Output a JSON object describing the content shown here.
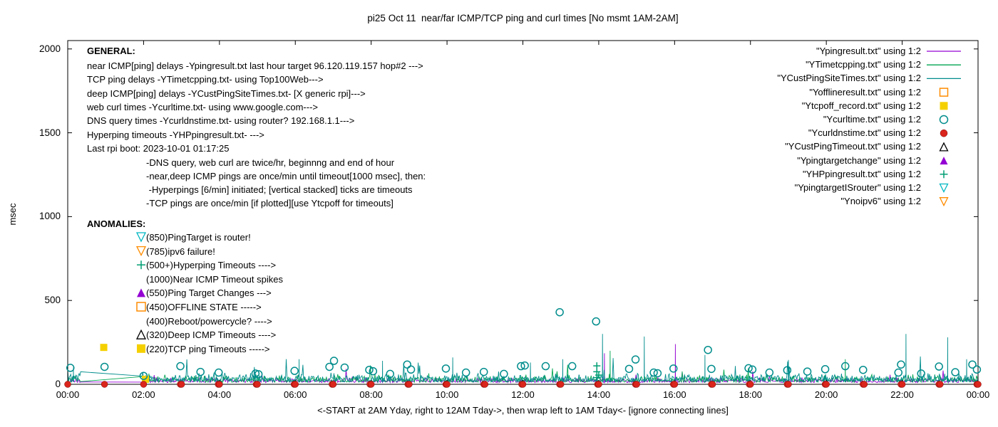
{
  "general": {
    "heading": "GENERAL:",
    "lines": [
      "near ICMP[ping] delays -Ypingresult.txt last hour target 96.120.119.157 hop#2 --->",
      "TCP ping delays -YTimetcpping.txt- using Top100Web--->",
      "deep ICMP[ping] delays -YCustPingSiteTimes.txt- [X generic rpi]--->",
      "web curl times -Ycurltime.txt- using www.google.com--->",
      "DNS query times -Ycurldnstime.txt- using router? 192.168.1.1--->",
      "Hyperping timeouts -YHPpingresult.txt- --->",
      "Last rpi boot: 2023-10-01 01:17:25"
    ],
    "notes": [
      "-DNS query, web curl are twice/hr, beginnng and end of hour",
      "-near,deep ICMP pings are once/min until timeout[1000 msec], then:",
      " -Hyperpings [6/min] initiated; [vertical stacked] ticks are timeouts",
      "-TCP pings are once/min [if plotted][use Ytcpoff for timeouts]"
    ]
  },
  "anomalies": {
    "heading": "ANOMALIES:",
    "items": [
      {
        "marker": "tri-down-open",
        "color": "#00B7C2",
        "text": "(850)PingTarget is router!"
      },
      {
        "marker": "tri-down-open",
        "color": "#FF8C00",
        "text": "(785)ipv6 failure!"
      },
      {
        "marker": "plus",
        "color": "#009E73",
        "text": "(500+)Hyperping Timeouts ---->"
      },
      {
        "marker": "none",
        "color": "#000000",
        "text": "(1000)Near ICMP Timeout spikes"
      },
      {
        "marker": "tri-up-filled",
        "color": "#9400D3",
        "text": "(550)Ping Target Changes --->"
      },
      {
        "marker": "square-open",
        "color": "#FF8C00",
        "text": "(450)OFFLINE STATE ----->"
      },
      {
        "marker": "none",
        "color": "#000000",
        "text": "(400)Reboot/powercycle? ---->"
      },
      {
        "marker": "tri-up-open",
        "color": "#000000",
        "text": "(320)Deep ICMP Timeouts ---->"
      },
      {
        "marker": "square-filled",
        "color": "#F5D000",
        "text": "(220)TCP ping Timeouts ----->"
      }
    ]
  },
  "chart_data": {
    "type": "line",
    "title": "pi25 Oct 11  near/far ICMP/TCP ping and curl times [No msmt 1AM-2AM]",
    "xlabel": "<-START at 2AM Yday, right to 12AM Tday->, then wrap left to 1AM Tday<- [ignore connecting lines]",
    "ylabel": "msec",
    "ylim": [
      0,
      2000
    ],
    "xlim_hours": [
      0,
      24
    ],
    "grid": false,
    "legend_position": "top-right",
    "no_measurement_window": "1AM-2AM",
    "x_ticks": [
      "00:00",
      "02:00",
      "04:00",
      "06:00",
      "08:00",
      "10:00",
      "12:00",
      "14:00",
      "16:00",
      "18:00",
      "20:00",
      "22:00",
      "00:00"
    ],
    "x_tick_hours": [
      0,
      2,
      4,
      6,
      8,
      10,
      12,
      14,
      16,
      18,
      20,
      22,
      24
    ],
    "y_ticks": [
      0,
      500,
      1000,
      1500,
      2000
    ],
    "series": [
      {
        "name": "\"Ypingresult.txt\" using 1:2",
        "type": "line",
        "marker": "line",
        "color": "#9400D3",
        "line_gen": {
          "seed": 11,
          "step_h": 0.02,
          "base": 10,
          "noise": 25,
          "spike_p": 0.006,
          "spike_amp": 70,
          "gap": [
            0.35,
            1.95
          ]
        },
        "spikes": [
          [
            14.15,
            185
          ],
          [
            16.02,
            240
          ]
        ]
      },
      {
        "name": "\"YTimetcpping.txt\" using 1:2",
        "type": "line",
        "marker": "line",
        "color": "#00A651",
        "line_gen": {
          "seed": 22,
          "step_h": 0.02,
          "base": 12,
          "noise": 35,
          "spike_p": 0.01,
          "spike_amp": 90,
          "gap": [
            0.35,
            1.95
          ]
        },
        "spikes": [
          [
            14.3,
            200
          ],
          [
            20.5,
            150
          ]
        ]
      },
      {
        "name": "\"YCustPingSiteTimes.txt\" using 1:2",
        "type": "line",
        "marker": "line",
        "color": "#008C8C",
        "line_gen": {
          "seed": 33,
          "step_h": 0.02,
          "base": 14,
          "noise": 45,
          "spike_p": 0.02,
          "spike_amp": 130,
          "gap": [
            0.35,
            1.95
          ]
        },
        "spikes": [
          [
            0.15,
            100
          ],
          [
            6.1,
            150
          ],
          [
            8.3,
            140
          ],
          [
            10.15,
            160
          ],
          [
            12.2,
            130
          ],
          [
            13.05,
            150
          ],
          [
            14.1,
            300
          ],
          [
            15.2,
            285
          ],
          [
            16.8,
            175
          ],
          [
            19.0,
            145
          ],
          [
            22.1,
            300
          ],
          [
            23.2,
            280
          ],
          [
            23.7,
            150
          ]
        ]
      },
      {
        "name": "\"Yofflineresult.txt\" using 1:2",
        "type": "points",
        "marker": "square-open",
        "color": "#FF8C00",
        "points": []
      },
      {
        "name": "\"Ytcpoff_record.txt\" using 1:2",
        "type": "points",
        "marker": "square-filled",
        "color": "#F5D000",
        "points": [
          [
            0.95,
            220
          ],
          [
            2.05,
            30
          ]
        ]
      },
      {
        "name": "\"Ycurltime.txt\" using 1:2",
        "type": "points",
        "marker": "circle-open",
        "color": "#008C8C",
        "points": [
          [
            0.07,
            98
          ],
          [
            0.97,
            104
          ],
          [
            2.0,
            50
          ],
          [
            2.97,
            108
          ],
          [
            3.5,
            74
          ],
          [
            3.98,
            70
          ],
          [
            4.95,
            64
          ],
          [
            5.03,
            60
          ],
          [
            5.98,
            80
          ],
          [
            6.9,
            104
          ],
          [
            7.02,
            140
          ],
          [
            7.3,
            100
          ],
          [
            7.95,
            86
          ],
          [
            8.05,
            78
          ],
          [
            8.5,
            62
          ],
          [
            8.95,
            118
          ],
          [
            9.05,
            88
          ],
          [
            9.97,
            94
          ],
          [
            10.5,
            70
          ],
          [
            10.97,
            74
          ],
          [
            11.5,
            62
          ],
          [
            11.95,
            108
          ],
          [
            12.05,
            112
          ],
          [
            12.6,
            108
          ],
          [
            12.97,
            430
          ],
          [
            13.3,
            108
          ],
          [
            13.93,
            375
          ],
          [
            14.8,
            92
          ],
          [
            14.97,
            148
          ],
          [
            15.45,
            70
          ],
          [
            15.55,
            66
          ],
          [
            15.97,
            94
          ],
          [
            16.88,
            205
          ],
          [
            16.97,
            92
          ],
          [
            17.95,
            96
          ],
          [
            18.05,
            88
          ],
          [
            18.5,
            70
          ],
          [
            18.97,
            84
          ],
          [
            19.5,
            76
          ],
          [
            19.97,
            90
          ],
          [
            20.5,
            108
          ],
          [
            20.97,
            86
          ],
          [
            21.9,
            70
          ],
          [
            21.97,
            118
          ],
          [
            22.5,
            64
          ],
          [
            22.97,
            106
          ],
          [
            23.4,
            72
          ],
          [
            23.85,
            118
          ],
          [
            23.97,
            88
          ]
        ]
      },
      {
        "name": "\"Ycurldnstime.txt\" using 1:2",
        "type": "points",
        "marker": "circle-filled",
        "color": "#DA251C",
        "x_values": [
          0,
          0.97,
          2,
          2.97,
          3,
          3.97,
          4,
          4.97,
          5,
          5.97,
          6,
          6.97,
          7,
          7.97,
          8,
          8.97,
          9,
          9.97,
          10,
          10.97,
          11,
          11.97,
          12,
          12.97,
          13,
          13.97,
          14,
          14.97,
          15,
          15.97,
          16,
          16.97,
          17,
          17.97,
          18,
          18.97,
          19,
          19.97,
          20,
          20.97,
          21,
          21.97,
          22,
          22.97,
          23,
          23.97,
          24
        ],
        "y_value": 0
      },
      {
        "name": "\"YCustPingTimeout.txt\" using 1:2",
        "type": "points",
        "marker": "tri-up-open",
        "color": "#000000",
        "points": []
      },
      {
        "name": "\"Ypingtargetchange\" using 1:2",
        "type": "points",
        "marker": "tri-up-filled",
        "color": "#9400D3",
        "points": []
      },
      {
        "name": "\"YHPpingresult.txt\" using 1:2",
        "type": "points",
        "marker": "plus",
        "color": "#009E73",
        "points": [
          [
            13.95,
            40
          ],
          [
            13.95,
            75
          ],
          [
            13.95,
            110
          ],
          [
            14.0,
            55
          ]
        ]
      },
      {
        "name": "\"YpingtargetISrouter\" using 1:2",
        "type": "points",
        "marker": "tri-down-open",
        "color": "#00B7C2",
        "points": []
      },
      {
        "name": "\"Ynoipv6\" using 1:2",
        "type": "points",
        "marker": "tri-down-open",
        "color": "#FF8C00",
        "points": []
      }
    ]
  }
}
